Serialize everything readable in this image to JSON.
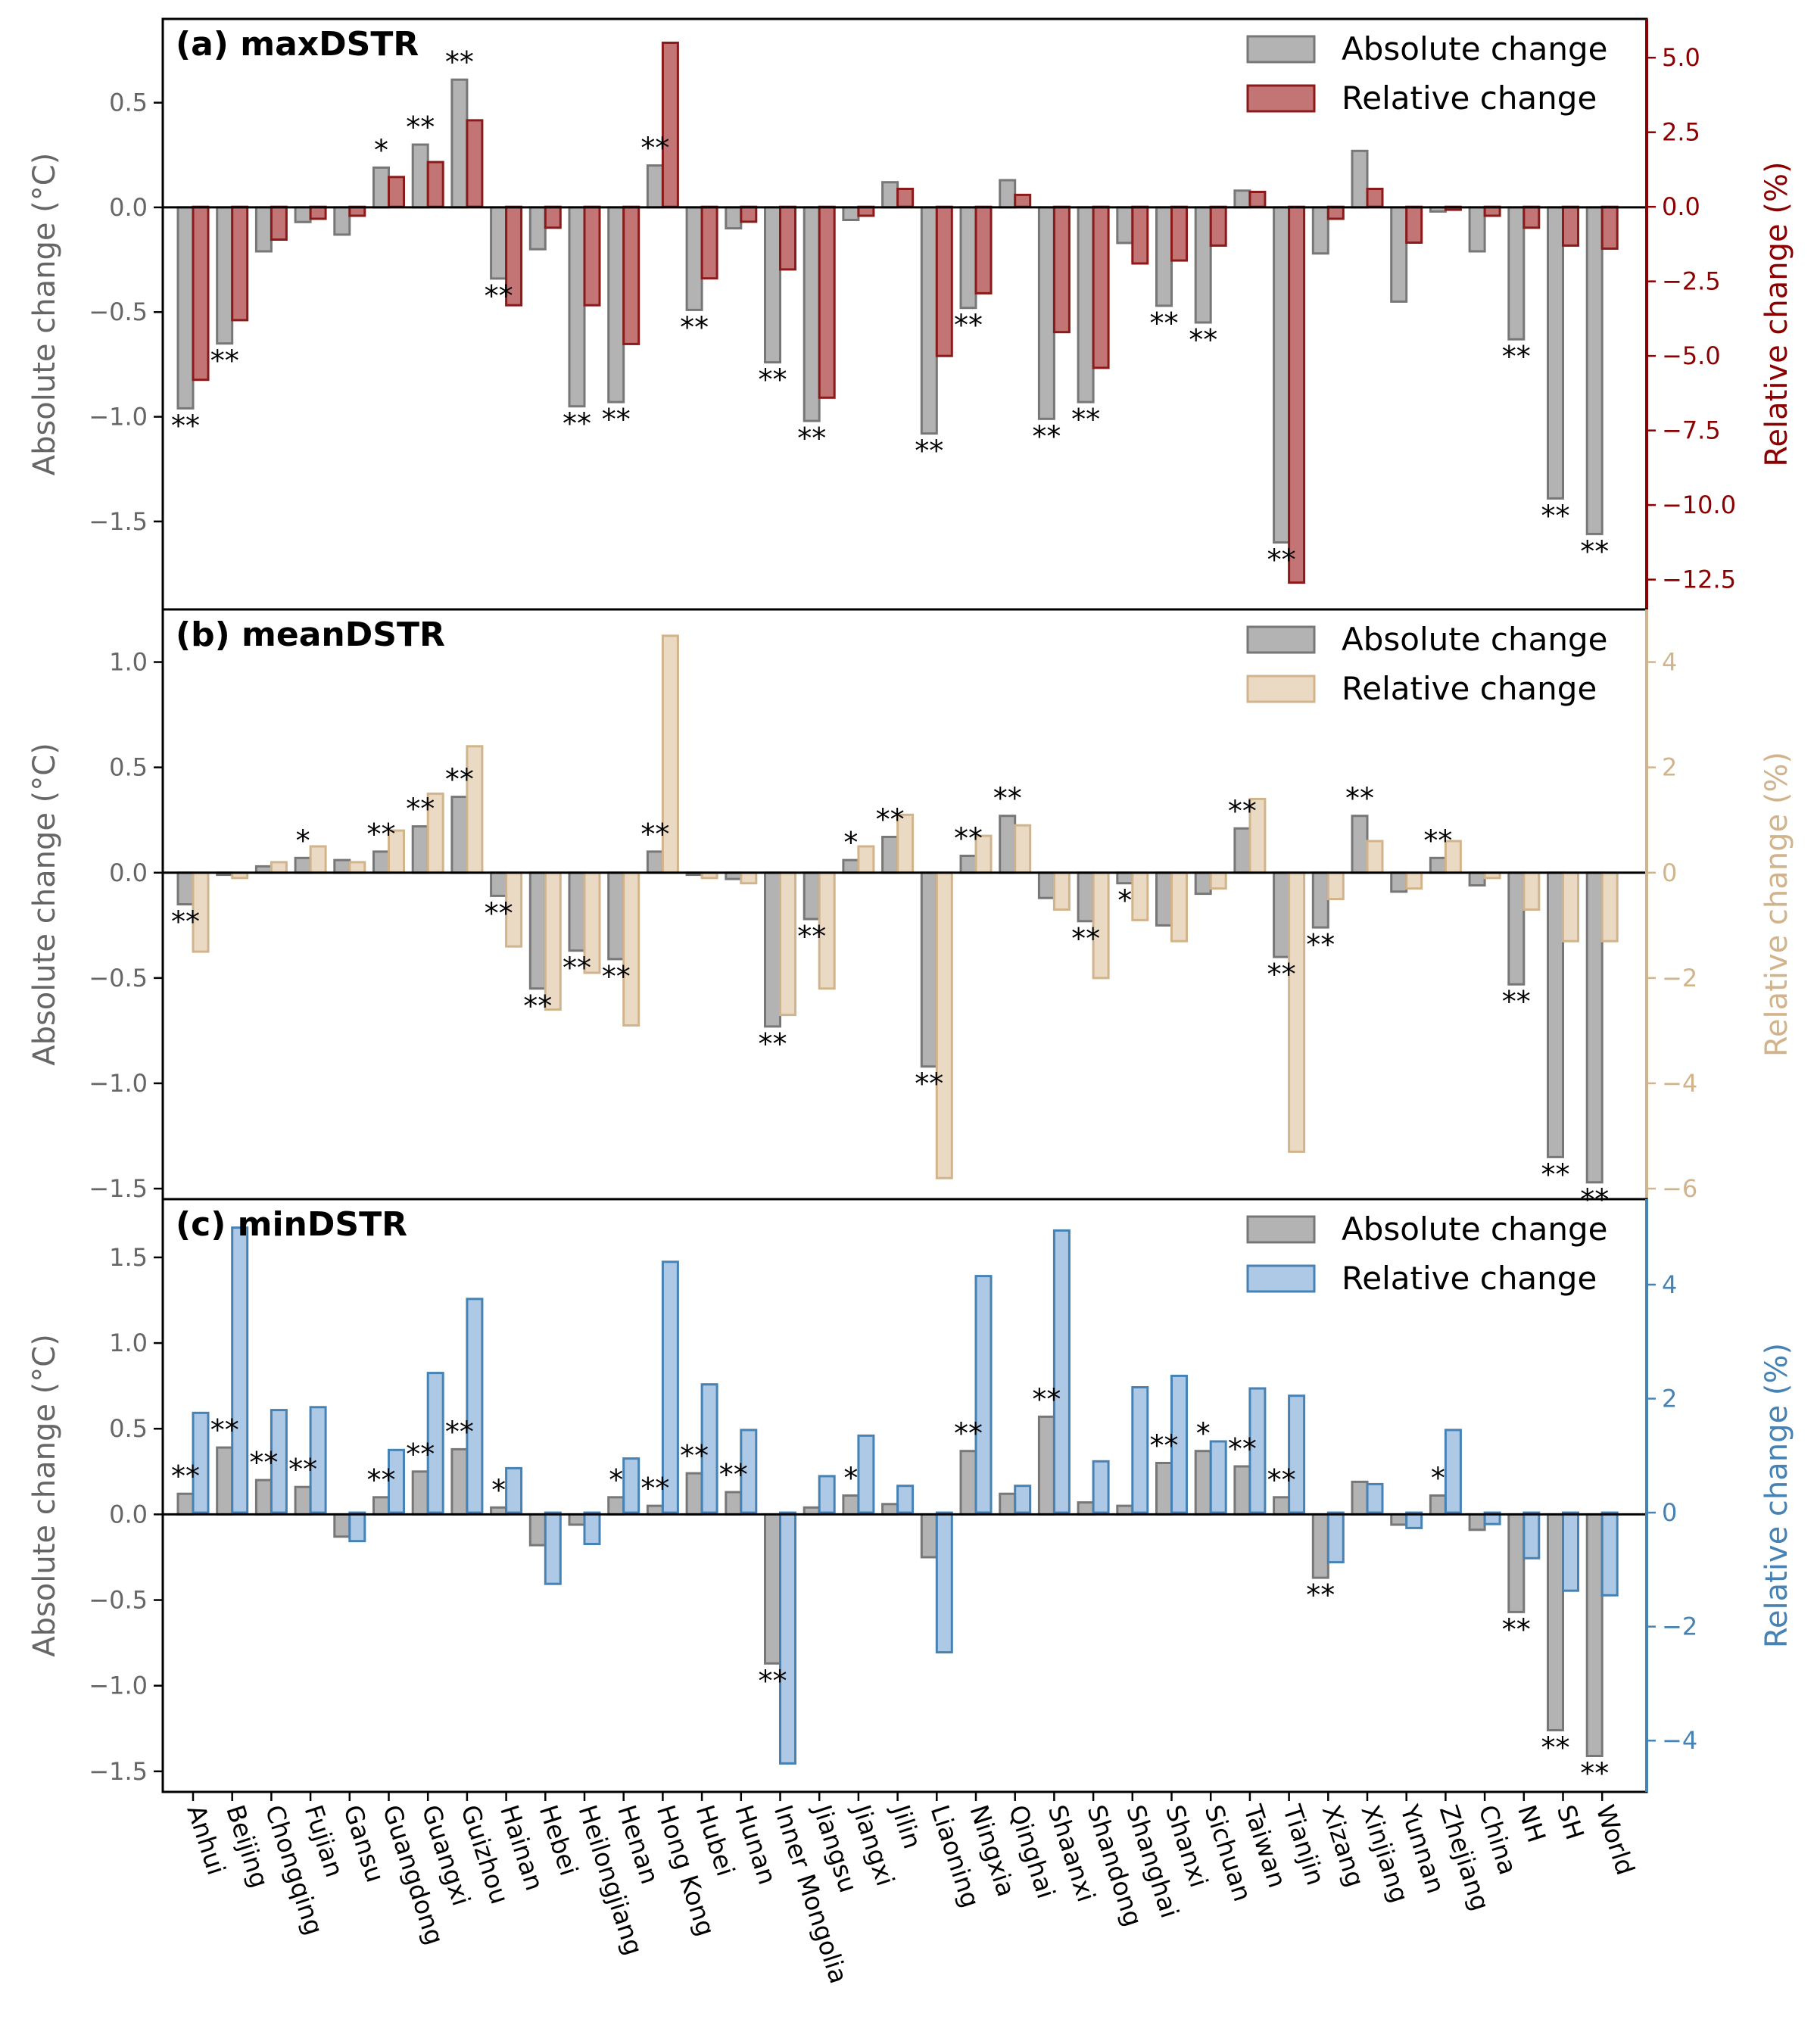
{
  "regions": [
    "Anhui",
    "Beijing",
    "Chongqing",
    "Fujian",
    "Gansu",
    "Guangdong",
    "Guangxi",
    "Guizhou",
    "Hainan",
    "Hebei",
    "Heilongjiang",
    "Henan",
    "Hong Kong",
    "Hubei",
    "Hunan",
    "Inner Mongolia",
    "Jiangsu",
    "Jiangxi",
    "Jilin",
    "Liaoning",
    "Ningxia",
    "Qinghai",
    "Shaanxi",
    "Shandong",
    "Shanghai",
    "Shanxi",
    "Sichuan",
    "Taiwan",
    "Tianjin",
    "Xizang",
    "Xinjiang",
    "Yunnan",
    "Zhejiang",
    "China",
    "NH",
    "SH",
    "World"
  ],
  "colors": {
    "absolute": "#999999",
    "absolute_edge": "#777777",
    "text_left": "#666666"
  },
  "chart_data": [
    {
      "panel": "a",
      "type": "bar",
      "title": "(a) maxDSTR",
      "ylabel_left": "Absolute change (°C)",
      "ylabel_right": "Relative change (%)",
      "ylim_left": [
        -1.92,
        0.9
      ],
      "ylim_right": [
        -13.5,
        6.3
      ],
      "yticks_left": [
        "0.5",
        "0.0",
        "−0.5",
        "−1.0",
        "−1.5"
      ],
      "yticks_right": [
        "5.0",
        "2.5",
        "0.0",
        "−2.5",
        "−5.0",
        "−7.5",
        "−10.0",
        "−12.5"
      ],
      "legend": [
        "Absolute change",
        "Relative change"
      ],
      "legend_position": "top-right",
      "relative_color": "#b85c5c",
      "relative_edge": "#8b1a1a",
      "right_axis_color": "#8b0000",
      "series": [
        {
          "name": "Absolute change",
          "values": [
            -0.96,
            -0.65,
            -0.21,
            -0.07,
            -0.13,
            0.19,
            0.3,
            0.61,
            -0.34,
            -0.2,
            -0.95,
            -0.93,
            0.2,
            -0.49,
            -0.1,
            -0.74,
            -1.02,
            -0.06,
            0.12,
            -1.08,
            -0.48,
            0.13,
            -1.01,
            -0.93,
            -0.17,
            -0.47,
            -0.55,
            0.08,
            -1.6,
            -0.22,
            0.27,
            -0.45,
            -0.02,
            -0.21,
            -0.63,
            -1.39,
            -1.56
          ]
        },
        {
          "name": "Relative change",
          "values": [
            -5.8,
            -3.8,
            -1.1,
            -0.4,
            -0.3,
            1.0,
            1.5,
            2.9,
            -3.3,
            -0.7,
            -3.3,
            -4.6,
            5.5,
            -2.4,
            -0.5,
            -2.1,
            -6.4,
            -0.3,
            0.6,
            -5.0,
            -2.9,
            0.4,
            -4.2,
            -5.4,
            -1.9,
            -1.8,
            -1.3,
            0.5,
            -12.6,
            -0.4,
            0.6,
            -1.2,
            -0.1,
            -0.3,
            -0.7,
            -1.3,
            -1.4
          ]
        }
      ],
      "significance": [
        "**",
        "**",
        "",
        "",
        "",
        "*",
        "**",
        "**",
        "**",
        "",
        "**",
        "**",
        "**",
        "**",
        "",
        "**",
        "**",
        "",
        "",
        "**",
        "**",
        "",
        "**",
        "**",
        "",
        "**",
        "**",
        "",
        "**",
        "",
        "",
        "",
        "",
        "",
        "**",
        "**",
        "**"
      ]
    },
    {
      "panel": "b",
      "type": "bar",
      "title": "(b) meanDSTR",
      "ylabel_left": "Absolute change (°C)",
      "ylabel_right": "Relative change (%)",
      "ylim_left": [
        -1.55,
        1.25
      ],
      "ylim_right": [
        -6.2,
        5.0
      ],
      "yticks_left": [
        "1.0",
        "0.5",
        "0.0",
        "−0.5",
        "−1.0",
        "−1.5"
      ],
      "yticks_right": [
        "4",
        "2",
        "0",
        "−2",
        "−4",
        "−6"
      ],
      "legend": [
        "Absolute change",
        "Relative change"
      ],
      "legend_position": "top-right",
      "relative_color": "#e8d4b8",
      "relative_edge": "#d2b48c",
      "right_axis_color": "#d2b48c",
      "series": [
        {
          "name": "Absolute change",
          "values": [
            -0.15,
            -0.01,
            0.03,
            0.07,
            0.06,
            0.1,
            0.22,
            0.36,
            -0.11,
            -0.55,
            -0.37,
            -0.41,
            0.1,
            -0.01,
            -0.03,
            -0.73,
            -0.22,
            0.06,
            0.17,
            -0.92,
            0.08,
            0.27,
            -0.12,
            -0.23,
            -0.05,
            -0.25,
            -0.1,
            0.21,
            -0.4,
            -0.26,
            0.27,
            -0.09,
            0.07,
            -0.06,
            -0.53,
            -1.35,
            -1.47
          ]
        },
        {
          "name": "Relative change",
          "values": [
            -1.5,
            -0.1,
            0.2,
            0.5,
            0.2,
            0.8,
            1.5,
            2.4,
            -1.4,
            -2.6,
            -1.9,
            -2.9,
            4.5,
            -0.1,
            -0.2,
            -2.7,
            -2.2,
            0.5,
            1.1,
            -5.8,
            0.7,
            0.9,
            -0.7,
            -2.0,
            -0.9,
            -1.3,
            -0.3,
            1.4,
            -5.3,
            -0.5,
            0.6,
            -0.3,
            0.6,
            -0.1,
            -0.7,
            -1.3,
            -1.3
          ]
        }
      ],
      "significance": [
        "**",
        "",
        "",
        "*",
        "",
        "**",
        "**",
        "**",
        "**",
        "**",
        "**",
        "**",
        "**",
        "",
        "",
        "**",
        "**",
        "*",
        "**",
        "**",
        "**",
        "**",
        "",
        "**",
        "*",
        "",
        "",
        "**",
        "**",
        "**",
        "**",
        "",
        "**",
        "",
        "**",
        "**",
        "**"
      ]
    },
    {
      "panel": "c",
      "type": "bar",
      "title": "(c) minDSTR",
      "ylabel_left": "Absolute change (°C)",
      "ylabel_right": "Relative change (%)",
      "ylim_left": [
        -1.62,
        1.84
      ],
      "ylim_right": [
        -4.9,
        5.5
      ],
      "yticks_left": [
        "1.5",
        "1.0",
        "0.5",
        "0.0",
        "−0.5",
        "−1.0",
        "−1.5"
      ],
      "yticks_right": [
        "4",
        "2",
        "0",
        "−2",
        "−4"
      ],
      "legend": [
        "Absolute change",
        "Relative change"
      ],
      "legend_position": "top-right",
      "relative_color": "#9fc0e0",
      "relative_edge": "#4682b4",
      "right_axis_color": "#4682b4",
      "series": [
        {
          "name": "Absolute change",
          "values": [
            0.12,
            0.39,
            0.2,
            0.16,
            -0.13,
            0.1,
            0.25,
            0.38,
            0.04,
            -0.18,
            -0.06,
            0.1,
            0.05,
            0.24,
            0.13,
            -0.87,
            0.04,
            0.11,
            0.06,
            -0.25,
            0.37,
            0.12,
            0.57,
            0.07,
            0.05,
            0.3,
            0.37,
            0.28,
            0.1,
            -0.37,
            0.19,
            -0.06,
            0.11,
            -0.09,
            -0.57,
            -1.26,
            -1.41
          ]
        },
        {
          "name": "Relative change",
          "values": [
            1.75,
            5.0,
            1.8,
            1.85,
            -0.5,
            1.1,
            2.45,
            3.75,
            0.78,
            -1.25,
            -0.55,
            0.95,
            4.4,
            2.25,
            1.45,
            -4.4,
            0.64,
            1.35,
            0.47,
            -2.45,
            4.15,
            0.47,
            4.95,
            0.9,
            2.2,
            2.4,
            1.25,
            2.18,
            2.05,
            -0.87,
            0.5,
            -0.27,
            1.45,
            -0.2,
            -0.8,
            -1.37,
            -1.45
          ]
        }
      ],
      "significance": [
        "**",
        "**",
        "**",
        "**",
        "",
        "**",
        "**",
        "**",
        "*",
        "",
        "",
        "*",
        "**",
        "**",
        "**",
        "**",
        "",
        "*",
        "",
        "",
        "**",
        "",
        "**",
        "",
        "",
        "**",
        "*",
        "**",
        "**",
        "**",
        "",
        "",
        "*",
        "",
        "**",
        "**",
        "**"
      ]
    }
  ]
}
